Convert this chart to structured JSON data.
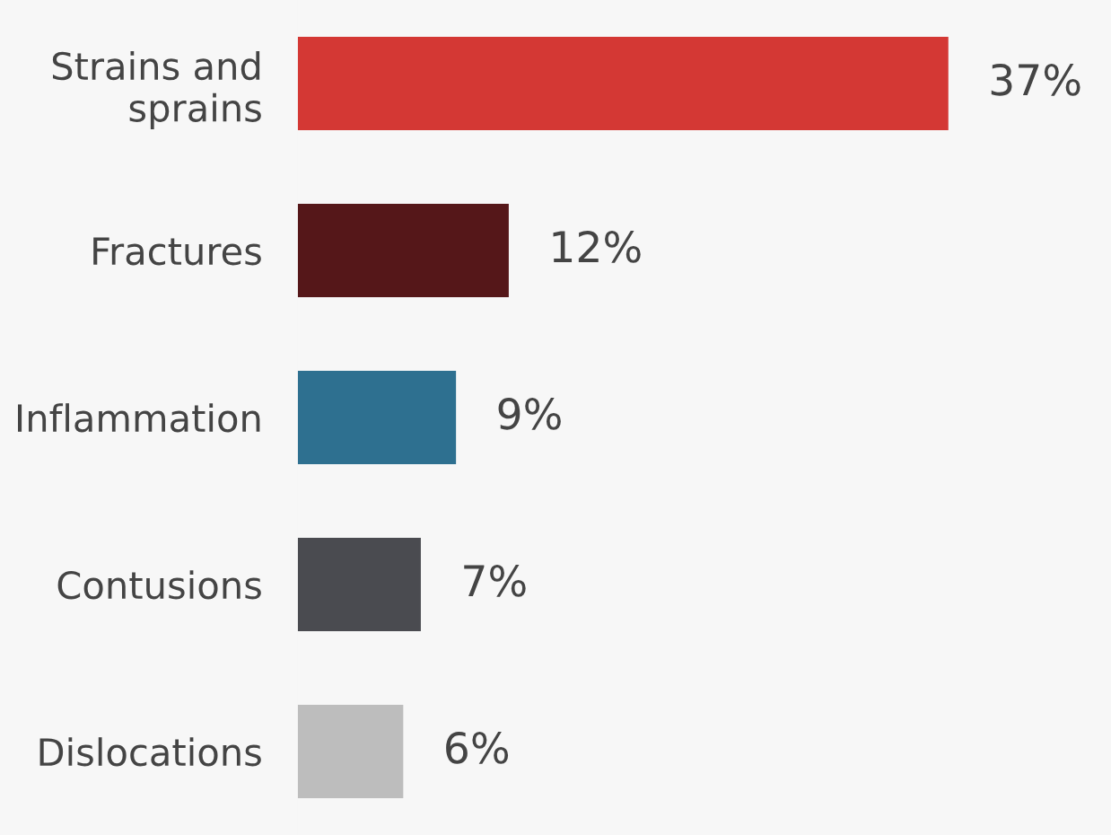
{
  "chart_data": {
    "type": "bar",
    "orientation": "horizontal",
    "categories": [
      "Strains and\nsprains",
      "Fractures",
      "Inflammation",
      "Contusions",
      "Dislocations"
    ],
    "values": [
      37,
      12,
      9,
      7,
      6
    ],
    "colors": [
      "#d43834",
      "#551719",
      "#2e7090",
      "#4a4b50",
      "#bdbdbd"
    ],
    "value_labels": [
      "37%",
      "12%",
      "9%",
      "7%",
      "6%"
    ],
    "grid": false,
    "legend": false
  }
}
